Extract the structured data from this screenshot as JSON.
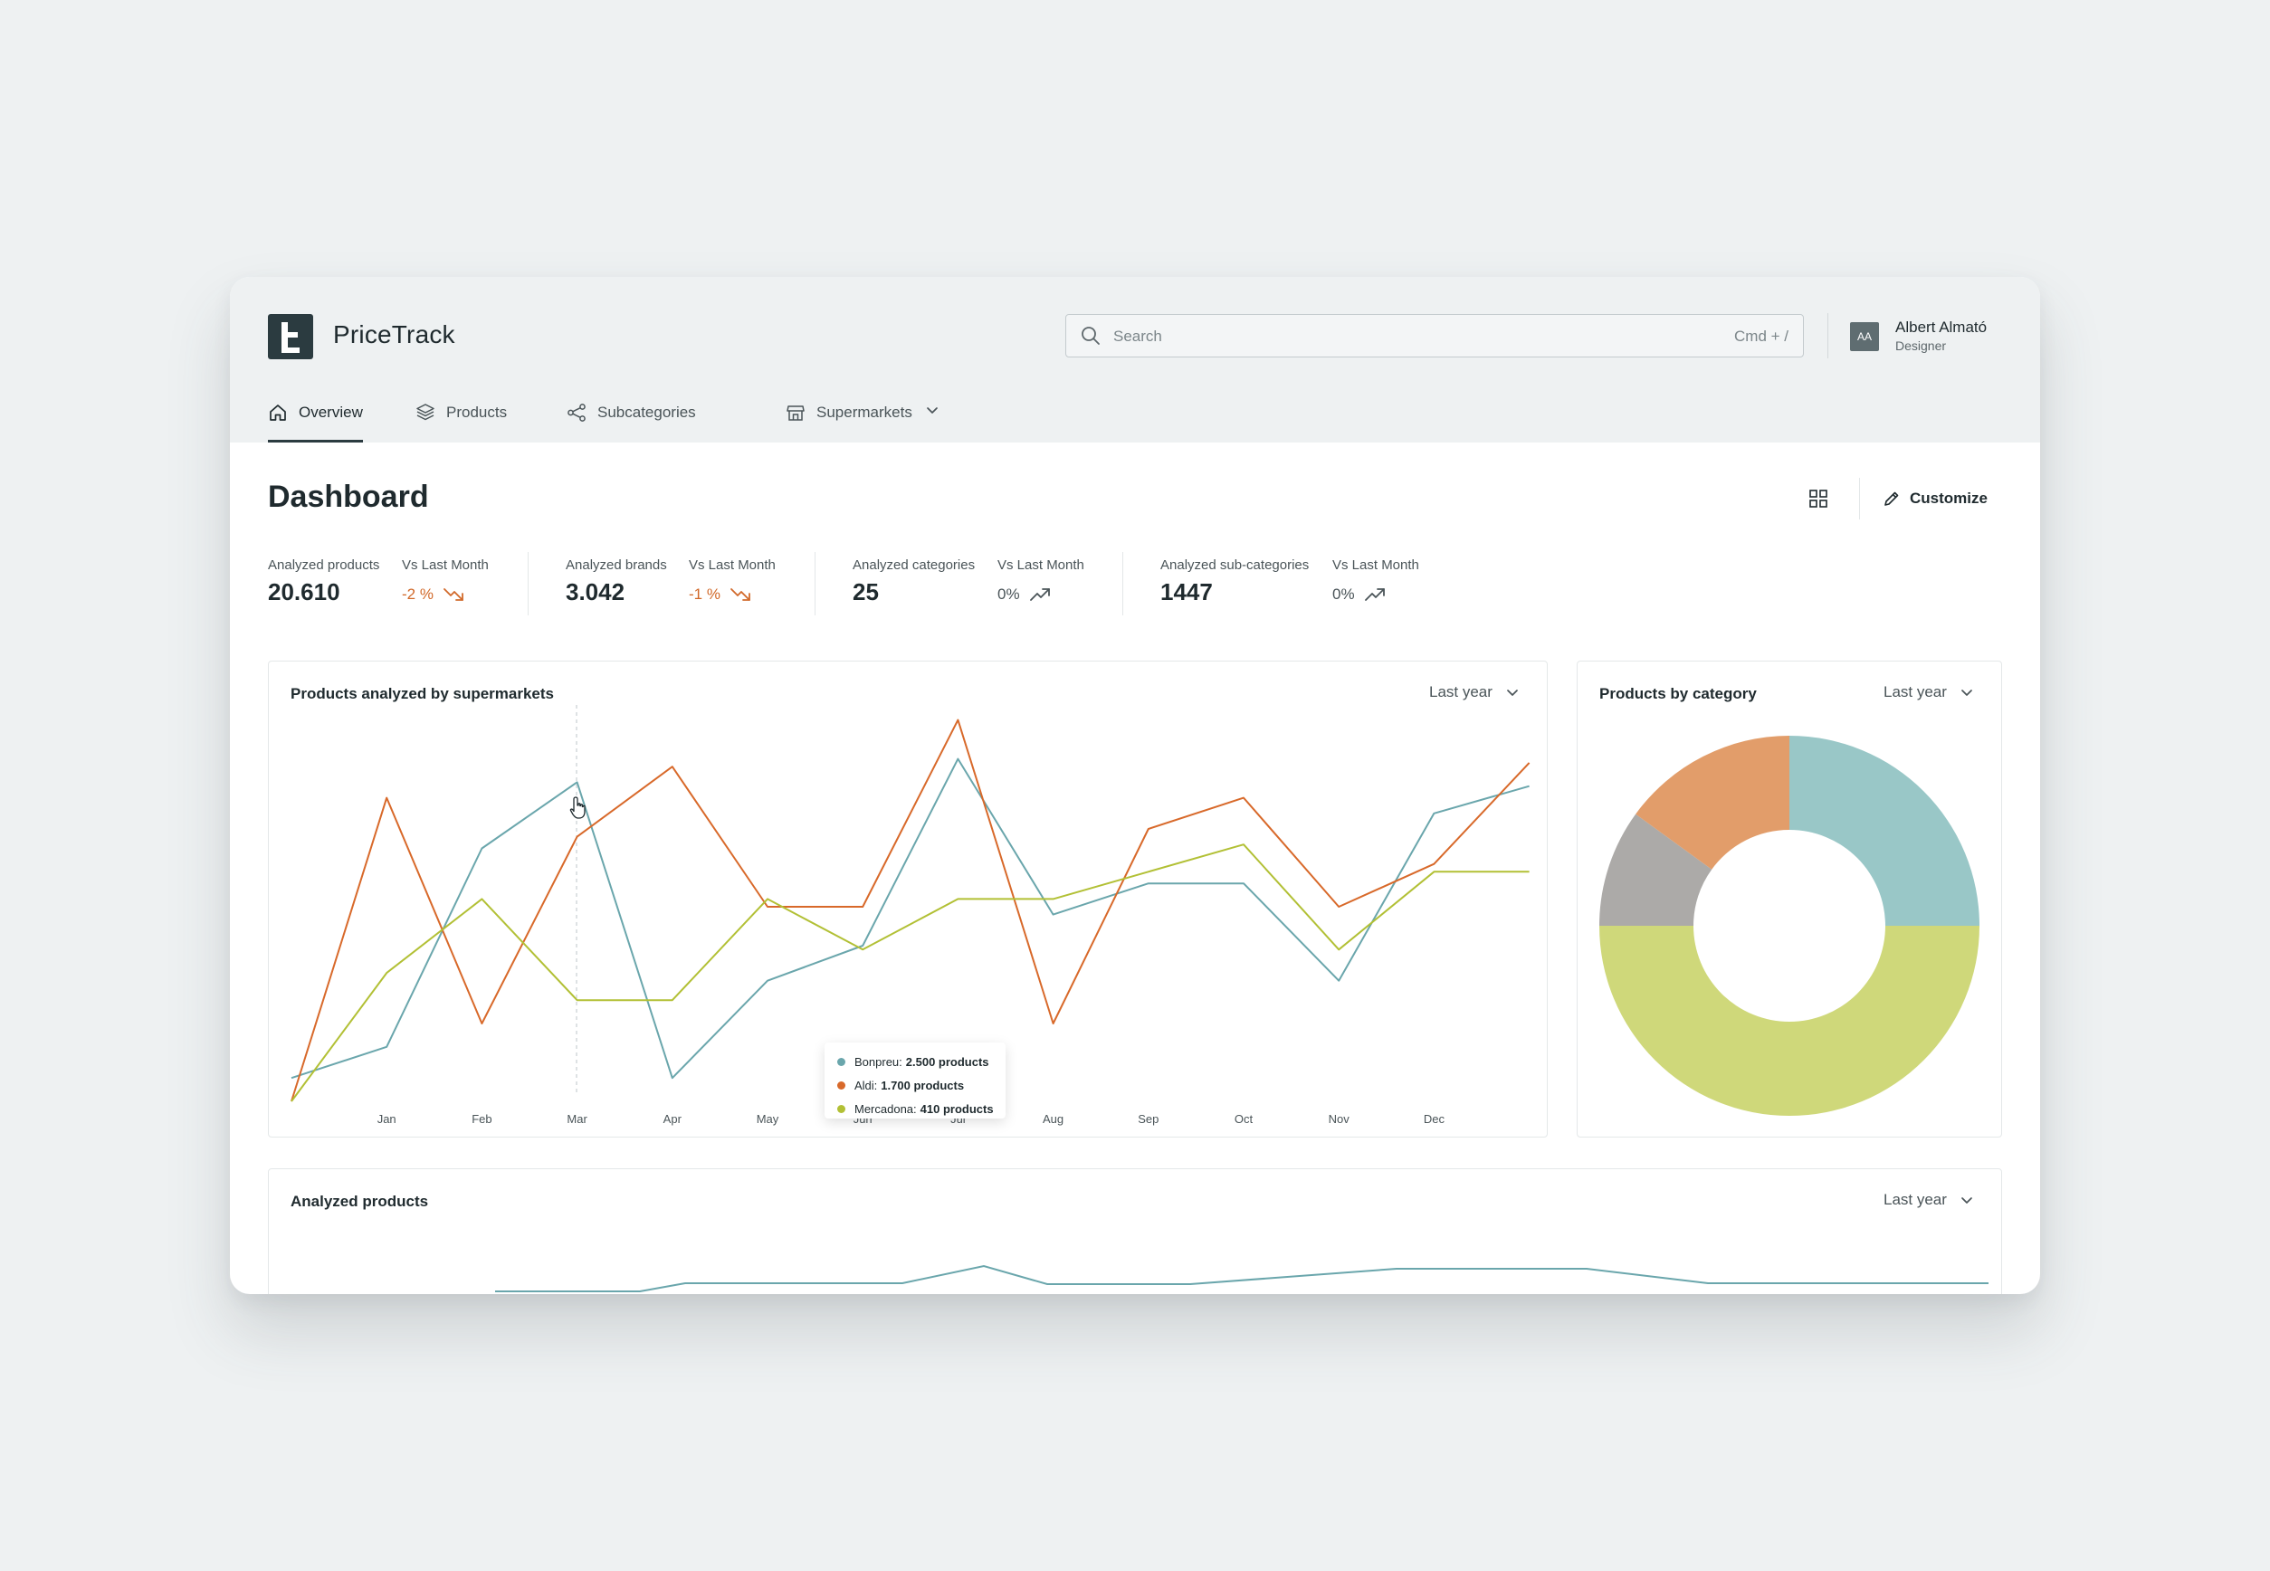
{
  "app": {
    "name": "PriceTrack"
  },
  "search": {
    "placeholder": "Search",
    "shortcut": "Cmd + /"
  },
  "user": {
    "initials": "AA",
    "name": "Albert Almató",
    "role": "Designer"
  },
  "nav": {
    "items": [
      {
        "label": "Overview",
        "icon": "home-icon",
        "active": true
      },
      {
        "label": "Products",
        "icon": "box-icon"
      },
      {
        "label": "Subcategories",
        "icon": "share-icon"
      },
      {
        "label": "Supermarkets",
        "icon": "store-icon",
        "dropdown": true
      }
    ]
  },
  "page": {
    "title": "Dashboard",
    "customize_label": "Customize"
  },
  "stats": [
    {
      "label": "Analyzed products",
      "value": "20.610",
      "delta_label": "Vs Last Month",
      "delta": "-2 %",
      "trend": "down"
    },
    {
      "label": "Analyzed brands",
      "value": "3.042",
      "delta_label": "Vs Last Month",
      "delta": "-1 %",
      "trend": "down"
    },
    {
      "label": "Analyzed categories",
      "value": "25",
      "delta_label": "Vs Last Month",
      "delta": "0%",
      "trend": "up"
    },
    {
      "label": "Analyzed sub-categories",
      "value": "1447",
      "delta_label": "Vs Last Month",
      "delta": "0%",
      "trend": "up"
    }
  ],
  "colors": {
    "bonpreu": "#6aa6ac",
    "aldi": "#d8692a",
    "mercadona": "#b2c035",
    "down": "#d1692a"
  },
  "cards": {
    "supermarkets": {
      "title": "Products analyzed by supermarkets",
      "period": "Last year"
    },
    "category": {
      "title": "Products by category",
      "period": "Last year"
    },
    "analyzed": {
      "title": "Analyzed products",
      "period": "Last year"
    }
  },
  "tooltip": {
    "rows": [
      {
        "name": "Bonpreu:",
        "value": "2.500 products",
        "color": "#6aa6ac"
      },
      {
        "name": "Aldi:",
        "value": "1.700 products",
        "color": "#d8692a"
      },
      {
        "name": "Mercadona:",
        "value": "410 products",
        "color": "#b2c035"
      }
    ]
  },
  "chart_data": [
    {
      "type": "line",
      "title": "Products analyzed by supermarkets",
      "categories": [
        "",
        "Jan",
        "Feb",
        "Mar",
        "Apr",
        "May",
        "Jun",
        "Jul",
        "Aug",
        "Sep",
        "Oct",
        "Nov",
        "Dec",
        ""
      ],
      "ylim": [
        0,
        100
      ],
      "series": [
        {
          "name": "Bonpreu",
          "color": "#6aa6ac",
          "values": [
            6,
            14,
            65,
            82,
            6,
            31,
            40,
            88,
            48,
            56,
            56,
            31,
            74,
            81
          ]
        },
        {
          "name": "Aldi",
          "color": "#d8692a",
          "values": [
            0,
            78,
            20,
            68,
            86,
            50,
            50,
            98,
            20,
            70,
            78,
            50,
            61,
            87
          ]
        },
        {
          "name": "Mercadona",
          "color": "#b2c035",
          "values": [
            0,
            33,
            52,
            26,
            26,
            52,
            39,
            52,
            52,
            59,
            66,
            39,
            59,
            59
          ]
        }
      ],
      "legend": "none",
      "grid": false
    },
    {
      "type": "pie",
      "title": "Products by category",
      "series": [
        {
          "values": [
            25,
            50,
            10,
            15
          ],
          "colors": [
            "#99c7c7",
            "#cfd87a",
            "#acaaa8",
            "#e29d6a"
          ]
        }
      ]
    },
    {
      "type": "line",
      "title": "Analyzed products",
      "series": [
        {
          "color": "#6aa6ac",
          "values": [
            0,
            0,
            0,
            0,
            0,
            0,
            0,
            0,
            0,
            0,
            0,
            0,
            0,
            0
          ]
        }
      ]
    }
  ]
}
